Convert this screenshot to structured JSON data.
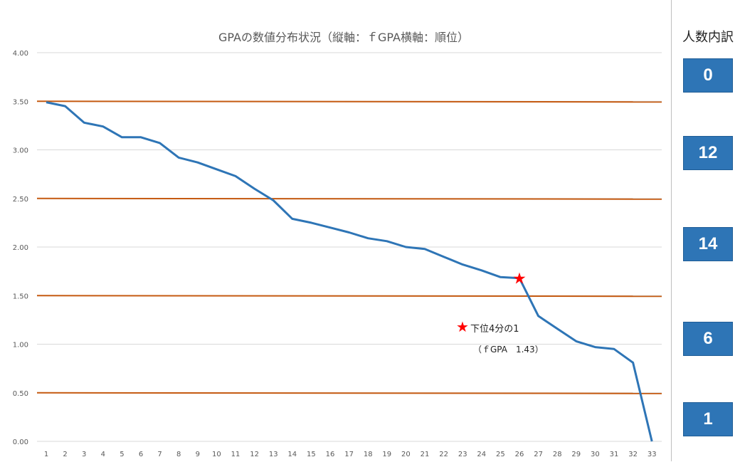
{
  "chart_data": {
    "type": "line",
    "title": "GPAの数値分布状況（縦軸：ｆGPA横軸：順位）",
    "x": [
      "1",
      "2",
      "3",
      "4",
      "5",
      "6",
      "7",
      "8",
      "9",
      "10",
      "11",
      "12",
      "13",
      "14",
      "15",
      "16",
      "17",
      "18",
      "19",
      "20",
      "21",
      "22",
      "23",
      "24",
      "25",
      "26",
      "27",
      "28",
      "29",
      "30",
      "31",
      "32",
      "33"
    ],
    "series": [
      {
        "values": [
          3.49,
          3.45,
          3.28,
          3.24,
          3.13,
          3.13,
          3.07,
          2.92,
          2.87,
          2.8,
          2.73,
          2.6,
          2.48,
          2.29,
          2.25,
          2.2,
          2.15,
          2.09,
          2.06,
          2.0,
          1.98,
          1.9,
          1.82,
          1.76,
          1.69,
          1.68,
          1.29,
          1.16,
          1.03,
          0.97,
          0.95,
          0.81,
          0.0
        ]
      }
    ],
    "yticks": [
      "0.00",
      "0.50",
      "1.00",
      "1.50",
      "2.00",
      "2.50",
      "3.00",
      "3.50",
      "4.00"
    ],
    "ylim": [
      0,
      4
    ],
    "reference_lines": [
      3.5,
      2.5,
      1.5,
      0.5
    ],
    "highlight": {
      "rank": 26,
      "value": 1.68
    },
    "annotation": {
      "line1": "下位4分の1",
      "line2": "（ｆGPA　1.43）",
      "marker": "★"
    },
    "grid": true,
    "colors": {
      "series": "#2e75b6",
      "reference": "#c55a11",
      "highlight": "#ff0000",
      "grid": "#d9d9d9"
    }
  },
  "side_panel": {
    "title": "人数内訳",
    "counts": [
      "0",
      "12",
      "14",
      "6",
      "1"
    ]
  }
}
